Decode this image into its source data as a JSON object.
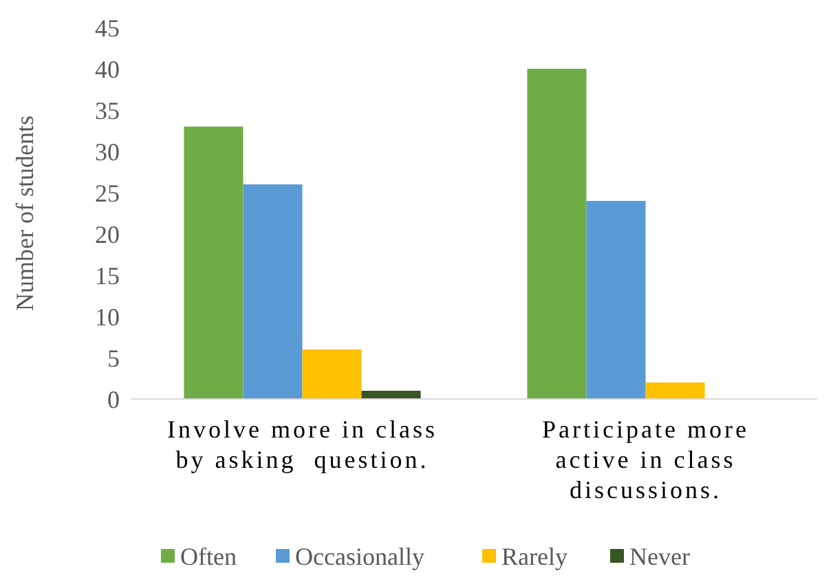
{
  "chart_data": {
    "type": "bar",
    "ylabel": "Number of students",
    "categories": [
      "Involve more in class by asking  question.",
      "Participate more active in class discussions."
    ],
    "series": [
      {
        "name": "Often",
        "color": "#70ad47",
        "values": [
          33,
          40
        ]
      },
      {
        "name": "Occasionally",
        "color": "#5b9bd5",
        "values": [
          26,
          24
        ]
      },
      {
        "name": "Rarely",
        "color": "#ffc000",
        "values": [
          6,
          2
        ]
      },
      {
        "name": "Never",
        "color": "#375623",
        "values": [
          1,
          0
        ]
      }
    ],
    "ylim": [
      0,
      45
    ],
    "yticks": [
      0,
      5,
      10,
      15,
      20,
      25,
      30,
      35,
      40,
      45
    ],
    "grid": false,
    "legend": "bottom"
  }
}
